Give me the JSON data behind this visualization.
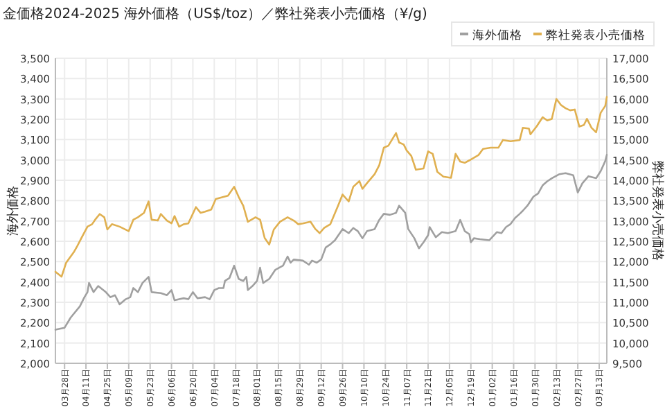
{
  "chart_data": {
    "type": "line",
    "title": "金価格2024-2025 海外価格（US$/toz）／弊社発表小売価格（¥/g)",
    "ylabel": "海外価格",
    "y2label": "弊社発表小売価格",
    "legend": "top right",
    "grid": true,
    "marker": "none",
    "line_style": "solid",
    "xlim": [
      "2024-03-22",
      "2025-03-18"
    ],
    "xticks": [
      {
        "value": "2024-03-28",
        "label": "03月28日"
      },
      {
        "value": "2024-04-11",
        "label": "04月11日"
      },
      {
        "value": "2024-04-25",
        "label": "04月25日"
      },
      {
        "value": "2024-05-09",
        "label": "05月09日"
      },
      {
        "value": "2024-05-23",
        "label": "05月23日"
      },
      {
        "value": "2024-06-06",
        "label": "06月06日"
      },
      {
        "value": "2024-06-20",
        "label": "06月20日"
      },
      {
        "value": "2024-07-04",
        "label": "07月04日"
      },
      {
        "value": "2024-07-18",
        "label": "07月18日"
      },
      {
        "value": "2024-08-01",
        "label": "08月01日"
      },
      {
        "value": "2024-08-15",
        "label": "08月15日"
      },
      {
        "value": "2024-08-29",
        "label": "08月29日"
      },
      {
        "value": "2024-09-12",
        "label": "09月12日"
      },
      {
        "value": "2024-09-26",
        "label": "09月26日"
      },
      {
        "value": "2024-10-10",
        "label": "10月10日"
      },
      {
        "value": "2024-10-24",
        "label": "10月24日"
      },
      {
        "value": "2024-11-07",
        "label": "11月07日"
      },
      {
        "value": "2024-11-21",
        "label": "11月21日"
      },
      {
        "value": "2024-12-05",
        "label": "12月05日"
      },
      {
        "value": "2024-12-19",
        "label": "12月19日"
      },
      {
        "value": "2025-01-02",
        "label": "01月02日"
      },
      {
        "value": "2025-01-16",
        "label": "01月16日"
      },
      {
        "value": "2025-01-30",
        "label": "01月30日"
      },
      {
        "value": "2025-02-13",
        "label": "02月13日"
      },
      {
        "value": "2025-02-27",
        "label": "02月27日"
      },
      {
        "value": "2025-03-13",
        "label": "03月13日"
      }
    ],
    "ylim": [
      2000,
      3500
    ],
    "yticks": [
      {
        "value": 2000,
        "label": "2,000"
      },
      {
        "value": 2100,
        "label": "2,100"
      },
      {
        "value": 2200,
        "label": "2,200"
      },
      {
        "value": 2300,
        "label": "2,300"
      },
      {
        "value": 2400,
        "label": "2,400"
      },
      {
        "value": 2500,
        "label": "2,500"
      },
      {
        "value": 2600,
        "label": "2,600"
      },
      {
        "value": 2700,
        "label": "2,700"
      },
      {
        "value": 2800,
        "label": "2,800"
      },
      {
        "value": 2900,
        "label": "2,900"
      },
      {
        "value": 3000,
        "label": "3,000"
      },
      {
        "value": 3100,
        "label": "3,100"
      },
      {
        "value": 3200,
        "label": "3,200"
      },
      {
        "value": 3300,
        "label": "3,300"
      },
      {
        "value": 3400,
        "label": "3,400"
      },
      {
        "value": 3500,
        "label": "3,500"
      }
    ],
    "y2lim": [
      9500,
      17000
    ],
    "y2ticks": [
      {
        "value": 9500,
        "label": "9,500"
      },
      {
        "value": 10000,
        "label": "10,000"
      },
      {
        "value": 10500,
        "label": "10,500"
      },
      {
        "value": 11000,
        "label": "11,000"
      },
      {
        "value": 11500,
        "label": "11,500"
      },
      {
        "value": 12000,
        "label": "12,000"
      },
      {
        "value": 12500,
        "label": "12,500"
      },
      {
        "value": 13000,
        "label": "13,000"
      },
      {
        "value": 13500,
        "label": "13,500"
      },
      {
        "value": 14000,
        "label": "14,000"
      },
      {
        "value": 14500,
        "label": "14,500"
      },
      {
        "value": 15000,
        "label": "15,000"
      },
      {
        "value": 15500,
        "label": "15,500"
      },
      {
        "value": 16000,
        "label": "16,000"
      },
      {
        "value": 16500,
        "label": "16,500"
      },
      {
        "value": 17000,
        "label": "17,000"
      }
    ],
    "series": [
      {
        "name": "海外価格",
        "color": "#a0a0a0",
        "axis": "y",
        "x": [
          "2024-03-22",
          "2024-03-28",
          "2024-04-01",
          "2024-04-07",
          "2024-04-10",
          "2024-04-12",
          "2024-04-13",
          "2024-04-16",
          "2024-04-19",
          "2024-04-24",
          "2024-04-27",
          "2024-04-30",
          "2024-05-03",
          "2024-05-07",
          "2024-05-10",
          "2024-05-12",
          "2024-05-15",
          "2024-05-18",
          "2024-05-22",
          "2024-05-24",
          "2024-05-30",
          "2024-06-03",
          "2024-06-06",
          "2024-06-08",
          "2024-06-11",
          "2024-06-14",
          "2024-06-17",
          "2024-06-20",
          "2024-06-23",
          "2024-06-28",
          "2024-07-01",
          "2024-07-04",
          "2024-07-07",
          "2024-07-10",
          "2024-07-11",
          "2024-07-14",
          "2024-07-17",
          "2024-07-20",
          "2024-07-23",
          "2024-07-25",
          "2024-07-26",
          "2024-07-29",
          "2024-08-01",
          "2024-08-03",
          "2024-08-05",
          "2024-08-09",
          "2024-08-13",
          "2024-08-18",
          "2024-08-21",
          "2024-08-23",
          "2024-08-25",
          "2024-08-31",
          "2024-09-04",
          "2024-09-06",
          "2024-09-09",
          "2024-09-12",
          "2024-09-15",
          "2024-09-18",
          "2024-09-21",
          "2024-09-26",
          "2024-09-30",
          "2024-10-03",
          "2024-10-06",
          "2024-10-09",
          "2024-10-12",
          "2024-10-17",
          "2024-10-20",
          "2024-10-23",
          "2024-10-27",
          "2024-10-31",
          "2024-11-02",
          "2024-11-06",
          "2024-11-08",
          "2024-11-12",
          "2024-11-15",
          "2024-11-18",
          "2024-11-21",
          "2024-11-22",
          "2024-11-26",
          "2024-11-30",
          "2024-12-04",
          "2024-12-09",
          "2024-12-12",
          "2024-12-15",
          "2024-12-18",
          "2024-12-19",
          "2024-12-21",
          "2024-12-25",
          "2024-12-31",
          "2025-01-05",
          "2025-01-08",
          "2025-01-11",
          "2025-01-14",
          "2025-01-17",
          "2025-01-20",
          "2025-01-22",
          "2025-01-25",
          "2025-01-29",
          "2025-02-01",
          "2025-02-04",
          "2025-02-07",
          "2025-02-10",
          "2025-02-15",
          "2025-02-19",
          "2025-02-24",
          "2025-02-27",
          "2025-03-02",
          "2025-03-06",
          "2025-03-11",
          "2025-03-14",
          "2025-03-17",
          "2025-03-18"
        ],
        "values": [
          2165,
          2175,
          2225,
          2280,
          2325,
          2350,
          2395,
          2350,
          2380,
          2350,
          2325,
          2335,
          2290,
          2315,
          2325,
          2370,
          2350,
          2395,
          2425,
          2350,
          2345,
          2335,
          2360,
          2310,
          2315,
          2320,
          2315,
          2350,
          2320,
          2325,
          2315,
          2360,
          2370,
          2370,
          2405,
          2420,
          2480,
          2415,
          2405,
          2425,
          2360,
          2380,
          2405,
          2470,
          2395,
          2415,
          2460,
          2480,
          2525,
          2495,
          2510,
          2505,
          2485,
          2505,
          2495,
          2510,
          2570,
          2585,
          2605,
          2660,
          2640,
          2665,
          2650,
          2615,
          2650,
          2660,
          2705,
          2735,
          2730,
          2740,
          2775,
          2740,
          2660,
          2615,
          2565,
          2595,
          2630,
          2670,
          2620,
          2645,
          2640,
          2650,
          2705,
          2650,
          2635,
          2595,
          2615,
          2610,
          2605,
          2645,
          2640,
          2670,
          2685,
          2715,
          2735,
          2750,
          2775,
          2820,
          2835,
          2875,
          2895,
          2910,
          2930,
          2935,
          2925,
          2840,
          2885,
          2920,
          2910,
          2945,
          2995,
          3025
        ]
      },
      {
        "name": "弊社発表小売価格",
        "color": "#e0b050",
        "axis": "y2",
        "x": [
          "2024-03-22",
          "2024-03-26",
          "2024-03-29",
          "2024-04-03",
          "2024-04-05",
          "2024-04-08",
          "2024-04-12",
          "2024-04-15",
          "2024-04-17",
          "2024-04-20",
          "2024-04-23",
          "2024-04-25",
          "2024-04-28",
          "2024-05-03",
          "2024-05-09",
          "2024-05-12",
          "2024-05-15",
          "2024-05-19",
          "2024-05-22",
          "2024-05-24",
          "2024-05-28",
          "2024-05-30",
          "2024-06-03",
          "2024-06-06",
          "2024-06-08",
          "2024-06-11",
          "2024-06-14",
          "2024-06-17",
          "2024-06-22",
          "2024-06-25",
          "2024-06-28",
          "2024-07-02",
          "2024-07-05",
          "2024-07-10",
          "2024-07-13",
          "2024-07-17",
          "2024-07-20",
          "2024-07-23",
          "2024-07-26",
          "2024-07-31",
          "2024-08-03",
          "2024-08-06",
          "2024-08-09",
          "2024-08-12",
          "2024-08-16",
          "2024-08-21",
          "2024-08-25",
          "2024-08-28",
          "2024-08-31",
          "2024-09-05",
          "2024-09-08",
          "2024-09-11",
          "2024-09-14",
          "2024-09-18",
          "2024-09-23",
          "2024-09-26",
          "2024-09-30",
          "2024-10-03",
          "2024-10-07",
          "2024-10-09",
          "2024-10-12",
          "2024-10-17",
          "2024-10-20",
          "2024-10-23",
          "2024-10-26",
          "2024-10-31",
          "2024-11-02",
          "2024-11-05",
          "2024-11-07",
          "2024-11-10",
          "2024-11-13",
          "2024-11-18",
          "2024-11-21",
          "2024-11-24",
          "2024-11-27",
          "2024-12-01",
          "2024-12-06",
          "2024-12-09",
          "2024-12-12",
          "2024-12-15",
          "2024-12-18",
          "2024-12-24",
          "2024-12-27",
          "2025-01-01",
          "2025-01-06",
          "2025-01-09",
          "2025-01-14",
          "2025-01-20",
          "2025-01-22",
          "2025-01-26",
          "2025-01-27",
          "2025-01-31",
          "2025-02-04",
          "2025-02-07",
          "2025-02-10",
          "2025-02-13",
          "2025-02-16",
          "2025-02-19",
          "2025-02-22",
          "2025-02-25",
          "2025-02-28",
          "2025-03-03",
          "2025-03-05",
          "2025-03-08",
          "2025-03-11",
          "2025-03-14",
          "2025-03-17",
          "2025-03-18"
        ],
        "values": [
          11750,
          11630,
          11970,
          12230,
          12360,
          12580,
          12860,
          12920,
          13030,
          13170,
          13090,
          12790,
          12920,
          12860,
          12750,
          13030,
          13090,
          13200,
          13480,
          13030,
          13010,
          13170,
          13010,
          12940,
          13120,
          12860,
          12920,
          12940,
          13340,
          13200,
          13230,
          13280,
          13540,
          13590,
          13620,
          13840,
          13590,
          13370,
          12980,
          13090,
          13030,
          12580,
          12420,
          12790,
          12980,
          13090,
          13010,
          12920,
          12940,
          12980,
          12810,
          12700,
          12830,
          12920,
          13370,
          13650,
          13480,
          13840,
          13980,
          13790,
          13930,
          14150,
          14370,
          14800,
          14850,
          15160,
          14930,
          14880,
          14730,
          14600,
          14260,
          14290,
          14710,
          14650,
          14210,
          14090,
          14060,
          14650,
          14460,
          14430,
          14490,
          14620,
          14770,
          14800,
          14800,
          14990,
          14960,
          14990,
          15290,
          15270,
          15130,
          15320,
          15550,
          15470,
          15510,
          16000,
          15850,
          15770,
          15720,
          15740,
          15320,
          15360,
          15510,
          15290,
          15180,
          15660,
          15830,
          16050
        ]
      }
    ]
  }
}
